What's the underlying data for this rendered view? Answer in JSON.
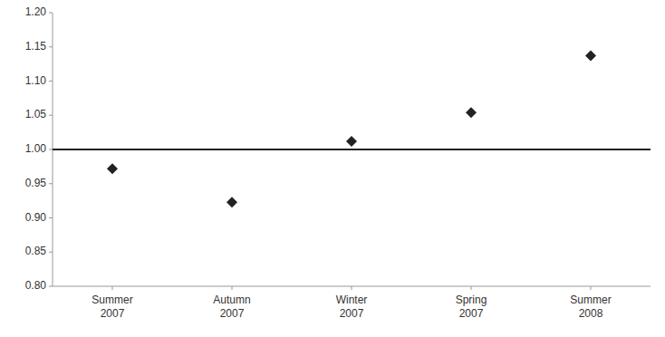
{
  "chart_data": {
    "type": "scatter",
    "categories": [
      "Summer\n2007",
      "Autumn\n2007",
      "Winter\n2007",
      "Spring\n2007",
      "Summer\n2008"
    ],
    "values": [
      0.972,
      0.923,
      1.012,
      1.054,
      1.137
    ],
    "color": "#222222",
    "marker": "diamond",
    "hline": 1.0,
    "ylim": [
      0.8,
      1.2
    ],
    "yticks": [
      {
        "value": 0.8,
        "label": "0.80"
      },
      0.85,
      {
        "value": 0.9,
        "label": "0.90"
      },
      0.95,
      {
        "value": 1.0,
        "label": "1.00"
      },
      1.05,
      {
        "value": 1.1,
        "label": "1.10"
      },
      1.15,
      {
        "value": 1.2,
        "label": "1.20"
      }
    ],
    "grid": false
  }
}
